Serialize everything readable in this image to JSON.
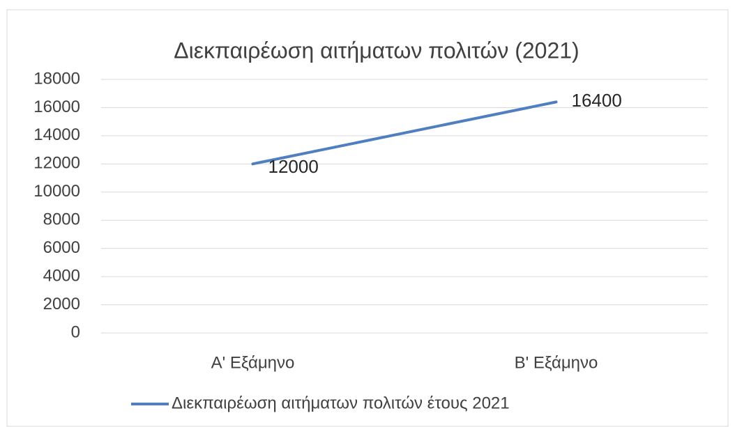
{
  "chart_data": {
    "type": "line",
    "title": "Διεκπαιρέωση αιτήματων πολιτών (2021)",
    "categories": [
      "Α' Εξάμηνο",
      "Β' Εξάμηνο"
    ],
    "series": [
      {
        "name": "Διεκπαιρέωση αιτήματων πολιτών έτους 2021",
        "color": "#4f7fc0",
        "values": [
          12000,
          16400
        ]
      }
    ],
    "ylim": [
      0,
      18000
    ],
    "yticks": [
      0,
      2000,
      4000,
      6000,
      8000,
      10000,
      12000,
      14000,
      16000,
      18000
    ],
    "grid": true,
    "legend": "bottom",
    "data_labels": true
  }
}
